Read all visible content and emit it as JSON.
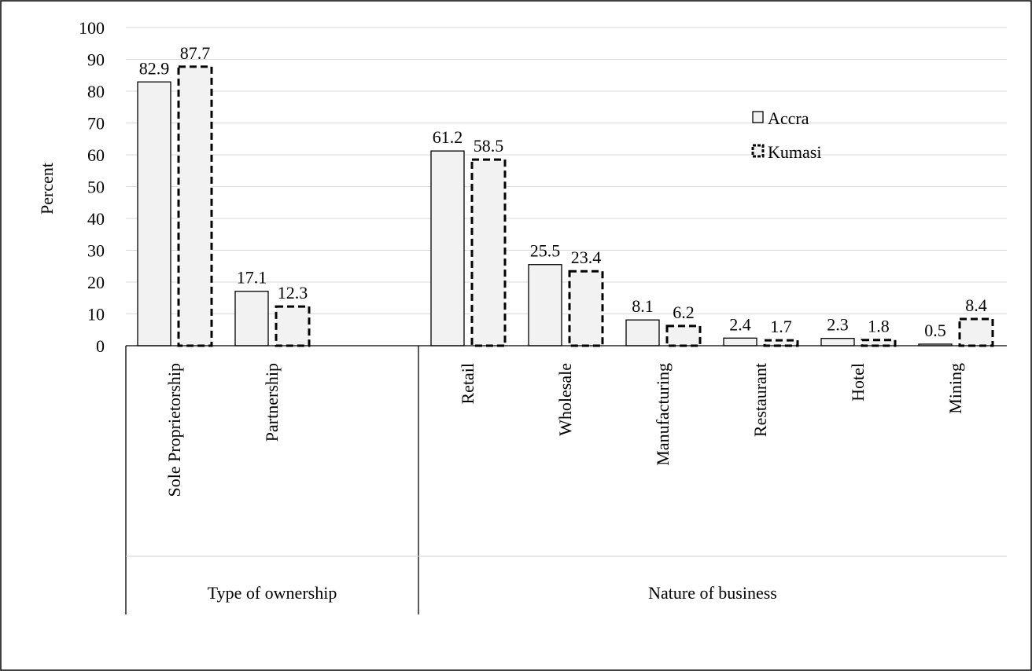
{
  "chart_data": {
    "type": "bar",
    "ylabel": "Percent",
    "xlabel": "",
    "ylim": [
      0,
      100
    ],
    "yticks": [
      "0",
      "10",
      "20",
      "30",
      "40",
      "50",
      "60",
      "70",
      "80",
      "90",
      "100"
    ],
    "grid": true,
    "legend_position": "top-right",
    "groups": [
      {
        "label": "Type of ownership",
        "categories": [
          "Sole Proprietorship",
          "Partnership"
        ]
      },
      {
        "label": "Nature of business",
        "categories": [
          "Retail",
          "Wholesale",
          "Manufacturing",
          "Restaurant",
          "Hotel",
          "Mining"
        ]
      }
    ],
    "categories": [
      "Sole Proprietorship",
      "Partnership",
      "Retail",
      "Wholesale",
      "Manufacturing",
      "Restaurant",
      "Hotel",
      "Mining"
    ],
    "series": [
      {
        "name": "Accra",
        "style": "solid",
        "fill": "#f2f2f2",
        "values": [
          82.9,
          17.1,
          61.2,
          25.5,
          8.1,
          2.4,
          2.3,
          0.5
        ],
        "labels": [
          "82.9",
          "17.1",
          "61.2",
          "25.5",
          "8.1",
          "2.4",
          "2.3",
          "0.5"
        ]
      },
      {
        "name": "Kumasi",
        "style": "dashed",
        "fill": "#f2f2f2",
        "values": [
          87.7,
          12.3,
          58.5,
          23.4,
          6.2,
          1.7,
          1.8,
          8.4
        ],
        "labels": [
          "87.7",
          "12.3",
          "58.5",
          "23.4",
          "6.2",
          "1.7",
          "1.8",
          "8.4"
        ]
      }
    ]
  }
}
